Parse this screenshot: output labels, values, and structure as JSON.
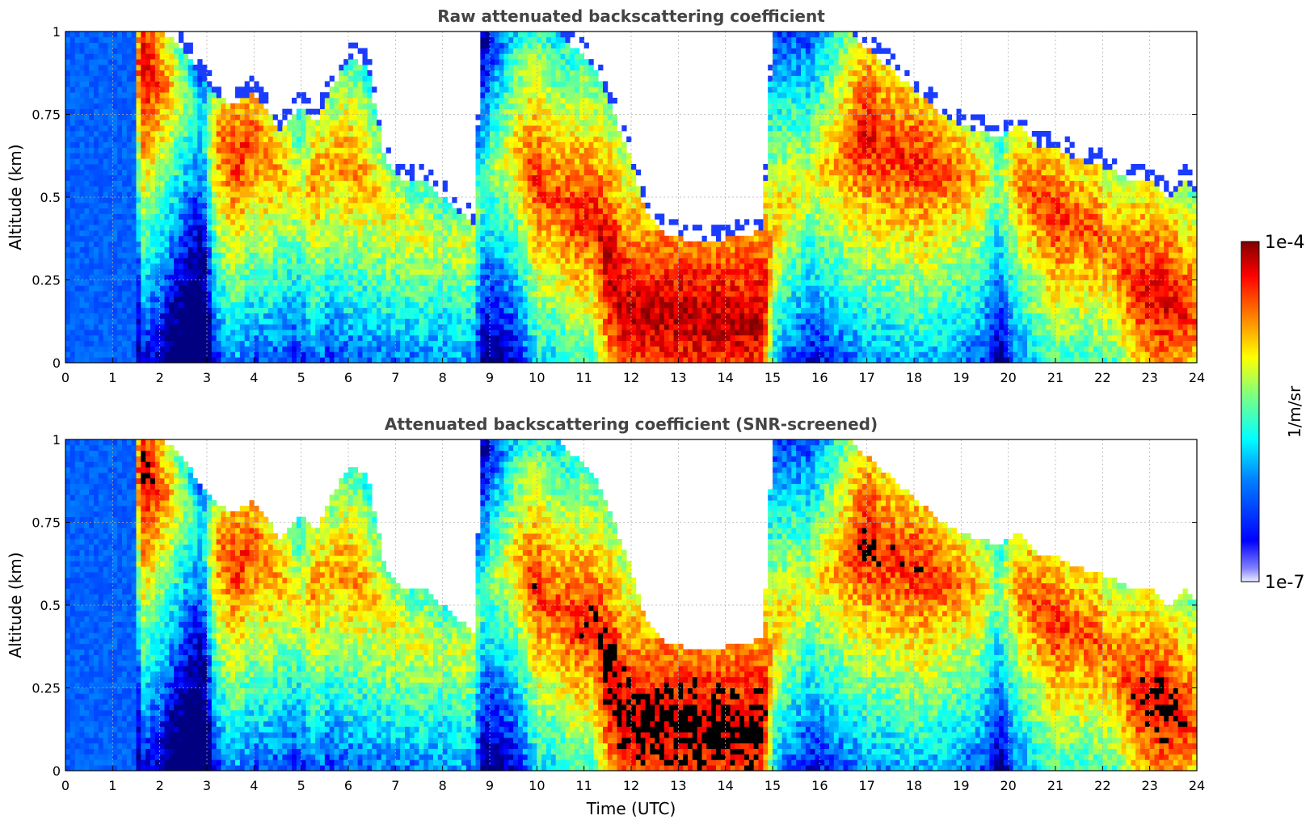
{
  "chart_data": [
    {
      "type": "heatmap",
      "title": "Raw attenuated backscattering coefficient",
      "xlabel": "",
      "ylabel": "Altitude (km)",
      "xlim": [
        0,
        24
      ],
      "ylim": [
        0,
        1
      ],
      "xticks": [
        "0",
        "1",
        "2",
        "3",
        "4",
        "5",
        "6",
        "7",
        "8",
        "9",
        "10",
        "11",
        "12",
        "13",
        "14",
        "15",
        "16",
        "17",
        "18",
        "19",
        "20",
        "21",
        "22",
        "23",
        "24"
      ],
      "yticks": [
        "0",
        "0.25",
        "0.5",
        "0.75",
        "1"
      ],
      "grid": true,
      "screened": false
    },
    {
      "type": "heatmap",
      "title": "Attenuated backscattering coefficient (SNR-screened)",
      "xlabel": "Time (UTC)",
      "ylabel": "Altitude (km)",
      "xlim": [
        0,
        24
      ],
      "ylim": [
        0,
        1
      ],
      "xticks": [
        "0",
        "1",
        "2",
        "3",
        "4",
        "5",
        "6",
        "7",
        "8",
        "9",
        "10",
        "11",
        "12",
        "13",
        "14",
        "15",
        "16",
        "17",
        "18",
        "19",
        "20",
        "21",
        "22",
        "23",
        "24"
      ],
      "yticks": [
        "0",
        "0.25",
        "0.5",
        "0.75",
        "1"
      ],
      "grid": true,
      "screened": true
    }
  ],
  "colorbar": {
    "label": "1/m/sr",
    "max_label": "1e-4",
    "min_label": "1e-7",
    "colormap": "jet",
    "colors": [
      "#00007f",
      "#0000ff",
      "#0080ff",
      "#00ffff",
      "#80ff80",
      "#ffff00",
      "#ff8000",
      "#ff0000",
      "#7f0000"
    ]
  },
  "profile": {
    "hours": [
      0,
      0.5,
      1,
      1.4,
      1.6,
      2,
      2.5,
      2.9,
      3.2,
      3.6,
      4,
      4.3,
      4.6,
      5,
      5.3,
      5.6,
      6,
      6.4,
      6.8,
      7.2,
      7.6,
      8,
      8.4,
      8.7,
      8.8,
      9.2,
      9.6,
      10,
      10.4,
      10.8,
      11.2,
      11.5,
      11.9,
      12.3,
      12.8,
      13.3,
      13.8,
      14.3,
      14.8,
      15,
      15.4,
      15.8,
      16.2,
      16.6,
      17,
      17.4,
      17.8,
      18.2,
      18.6,
      19,
      19.4,
      19.8,
      20.2,
      20.6,
      21,
      21.4,
      21.8,
      22.2,
      22.6,
      23,
      23.4,
      23.8,
      24
    ],
    "cloud_top_km": [
      1,
      1,
      1,
      1,
      1,
      1,
      0.95,
      0.85,
      0.8,
      0.78,
      0.82,
      0.75,
      0.7,
      0.78,
      0.72,
      0.82,
      0.92,
      0.9,
      0.6,
      0.55,
      0.55,
      0.5,
      0.45,
      0.42,
      1,
      1,
      1,
      1,
      1,
      0.95,
      0.9,
      0.8,
      0.65,
      0.45,
      0.38,
      0.37,
      0.37,
      0.38,
      0.4,
      1,
      1,
      1,
      1,
      1,
      0.95,
      0.9,
      0.85,
      0.8,
      0.75,
      0.72,
      0.7,
      0.68,
      0.72,
      0.65,
      0.65,
      0.62,
      0.6,
      0.58,
      0.55,
      0.55,
      0.5,
      0.55,
      0.5
    ],
    "layer_center_km": [
      0.5,
      0.5,
      0.5,
      0.9,
      0.9,
      0.85,
      0.8,
      0.7,
      0.65,
      0.62,
      0.68,
      0.6,
      0.58,
      0.5,
      0.55,
      0.6,
      0.6,
      0.55,
      0.45,
      0.4,
      0.38,
      0.35,
      0.35,
      0.35,
      0.5,
      0.6,
      0.65,
      0.55,
      0.5,
      0.45,
      0.45,
      0.3,
      0.15,
      0.14,
      0.14,
      0.14,
      0.13,
      0.12,
      0.13,
      0.4,
      0.5,
      0.55,
      0.6,
      0.65,
      0.7,
      0.65,
      0.62,
      0.6,
      0.58,
      0.56,
      0.55,
      0.55,
      0.56,
      0.5,
      0.45,
      0.42,
      0.4,
      0.35,
      0.25,
      0.2,
      0.18,
      0.15,
      0.15
    ],
    "intensity": [
      0.28,
      0.28,
      0.28,
      0.3,
      0.95,
      0.8,
      0.55,
      0.35,
      0.75,
      0.85,
      0.8,
      0.75,
      0.7,
      0.6,
      0.75,
      0.7,
      0.75,
      0.7,
      0.65,
      0.6,
      0.6,
      0.55,
      0.6,
      0.55,
      0.45,
      0.55,
      0.7,
      0.85,
      0.8,
      0.85,
      0.85,
      0.95,
      0.95,
      0.95,
      0.95,
      0.95,
      0.95,
      0.95,
      0.95,
      0.7,
      0.65,
      0.6,
      0.7,
      0.8,
      0.9,
      0.85,
      0.85,
      0.85,
      0.8,
      0.75,
      0.7,
      0.5,
      0.75,
      0.8,
      0.85,
      0.8,
      0.8,
      0.75,
      0.85,
      0.9,
      0.9,
      0.85,
      0.8
    ]
  }
}
